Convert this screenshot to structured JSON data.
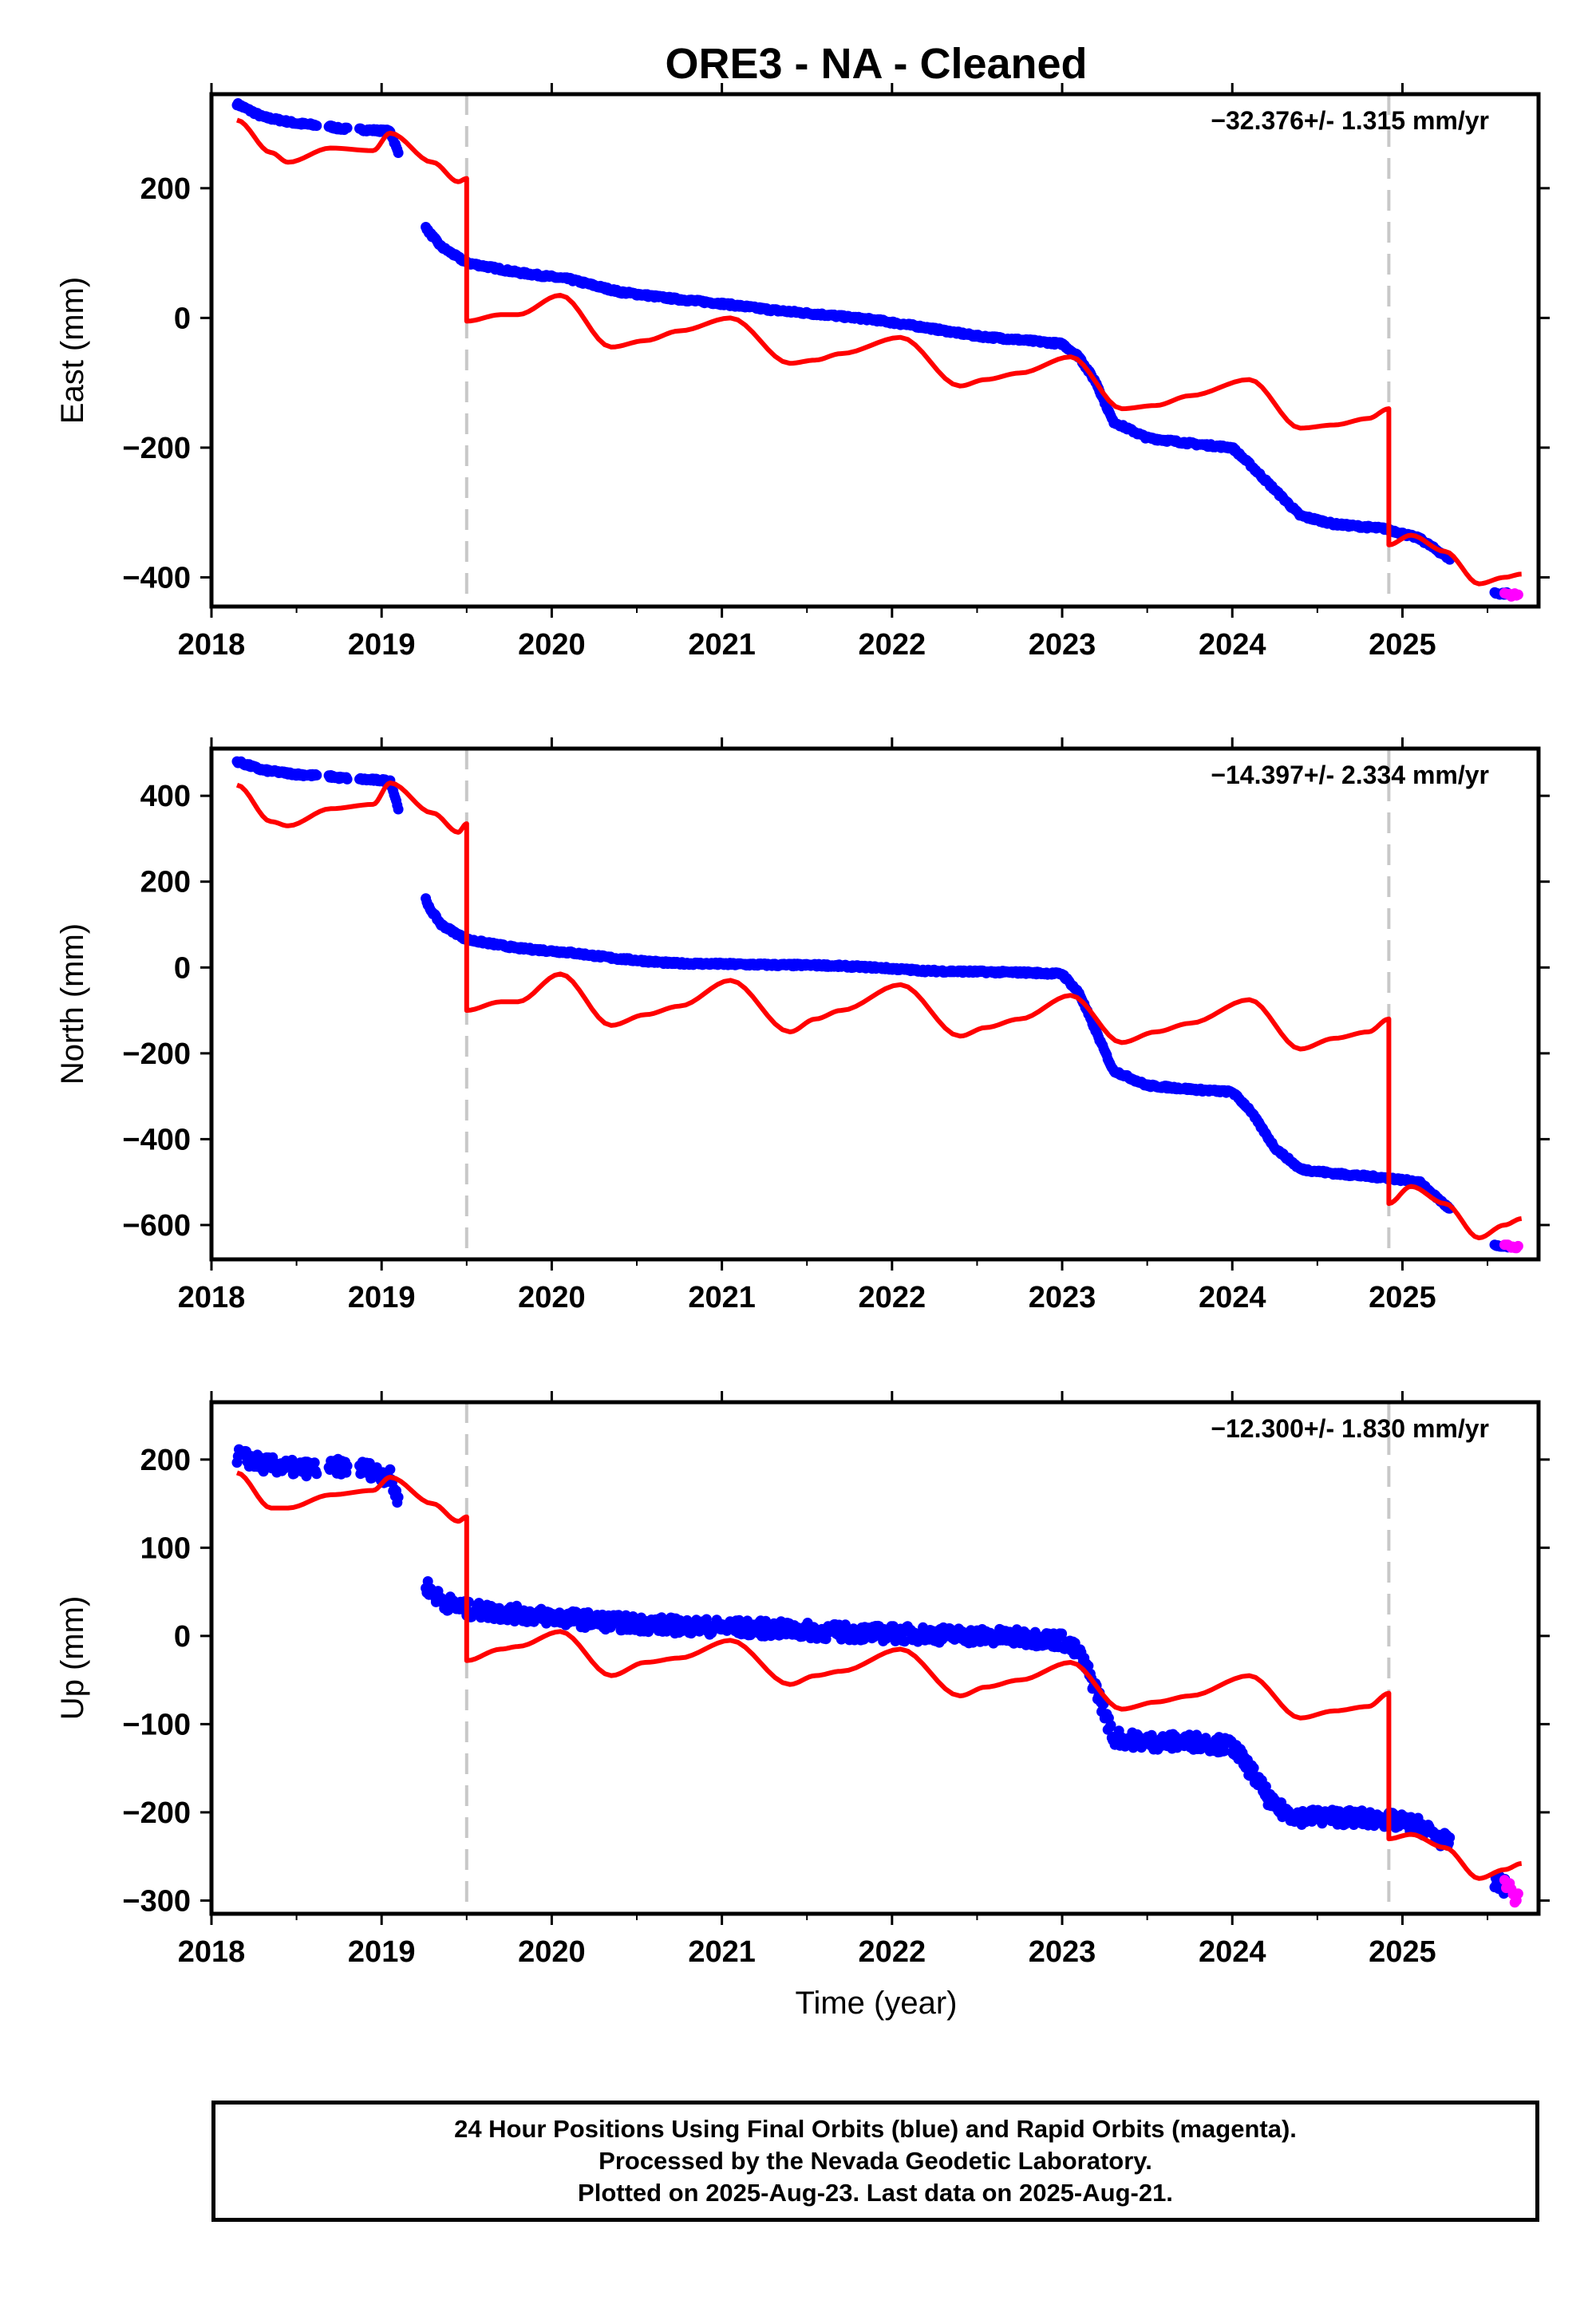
{
  "title": "ORE3  - NA - Cleaned",
  "xlabel": "Time (year)",
  "caption": [
    "24 Hour Positions Using Final Orbits (blue) and Rapid Orbits (magenta).",
    "Processed by the Nevada Geodetic Laboratory.",
    "Plotted on 2025-Aug-23. Last data on 2025-Aug-21."
  ],
  "colors": {
    "final": "#0000ff",
    "rapid": "#ff00ff",
    "model": "#ff0000",
    "event": "#c8c8c8"
  },
  "chart_data": [
    {
      "type": "scatter",
      "ylabel": "East (mm)",
      "rate_label": "-32.376+/- 1.315 mm/yr",
      "xlim": [
        2018,
        2025.8
      ],
      "ylim": [
        -445,
        345
      ],
      "xticks": [
        2018,
        2019,
        2020,
        2021,
        2022,
        2023,
        2024,
        2025
      ],
      "yticks": [
        -400,
        -200,
        0,
        200
      ],
      "event_lines": [
        2019.5,
        2024.92
      ],
      "series": [
        {
          "color": "#0000ff",
          "noise": 2,
          "x": [
            2018.15,
            2018.3,
            2018.5,
            2018.7,
            2018.75,
            2018.9,
            2019.05,
            2019.27,
            2019.35,
            2019.5,
            2019.8,
            2020.1,
            2020.4,
            2020.7,
            2021.0,
            2021.3,
            2021.6,
            2021.9,
            2022.2,
            2022.5,
            2022.8,
            2023.0,
            2023.1,
            2023.2,
            2023.3,
            2023.5,
            2023.8,
            2024.0,
            2024.1,
            2024.25,
            2024.4,
            2024.6,
            2024.9,
            2025.1,
            2025.27,
            2025.55,
            2025.62
          ],
          "y": [
            330,
            310,
            300,
            295,
            292,
            290,
            288,
            135,
            110,
            85,
            70,
            60,
            40,
            30,
            22,
            12,
            5,
            -3,
            -15,
            -28,
            -35,
            -40,
            -60,
            -100,
            -160,
            -185,
            -195,
            -200,
            -225,
            -265,
            -305,
            -318,
            -325,
            -340,
            -370,
            -425,
            -425
          ]
        },
        {
          "color": "#ff00ff",
          "noise": 3,
          "x": [
            2025.6,
            2025.68
          ],
          "y": [
            -425,
            -428
          ]
        },
        {
          "color": "#ff0000",
          "kind": "line",
          "x": [
            2018.15,
            2018.35,
            2018.45,
            2018.7,
            2018.95,
            2019.05,
            2019.3,
            2019.45,
            2019.5,
            2019.5,
            2019.7,
            2019.8,
            2020.05,
            2020.35,
            2020.55,
            2020.75,
            2021.05,
            2021.4,
            2021.55,
            2021.7,
            2022.05,
            2022.4,
            2022.55,
            2022.75,
            2023.05,
            2023.35,
            2023.55,
            2023.75,
            2024.1,
            2024.4,
            2024.6,
            2024.8,
            2024.92,
            2024.92,
            2025.05,
            2025.25,
            2025.45,
            2025.6,
            2025.7
          ],
          "y": [
            305,
            255,
            240,
            262,
            258,
            285,
            240,
            210,
            215,
            -5,
            5,
            5,
            35,
            -45,
            -35,
            -20,
            0,
            -70,
            -65,
            -55,
            -30,
            -105,
            -95,
            -85,
            -60,
            -140,
            -135,
            -120,
            -95,
            -170,
            -165,
            -155,
            -140,
            -350,
            -335,
            -360,
            -410,
            -400,
            -395
          ]
        }
      ]
    },
    {
      "type": "scatter",
      "ylabel": "North (mm)",
      "rate_label": "-14.397+/- 2.334 mm/yr",
      "xlim": [
        2018,
        2025.8
      ],
      "ylim": [
        -680,
        510
      ],
      "xticks": [
        2018,
        2019,
        2020,
        2021,
        2022,
        2023,
        2024,
        2025
      ],
      "yticks": [
        -600,
        -400,
        -200,
        0,
        200,
        400
      ],
      "event_lines": [
        2019.5,
        2024.92
      ],
      "series": [
        {
          "color": "#0000ff",
          "noise": 3,
          "x": [
            2018.15,
            2018.3,
            2018.5,
            2018.7,
            2018.75,
            2018.9,
            2019.05,
            2019.27,
            2019.35,
            2019.5,
            2019.8,
            2020.1,
            2020.4,
            2020.7,
            2021.0,
            2021.3,
            2021.6,
            2021.9,
            2022.2,
            2022.5,
            2022.8,
            2023.0,
            2023.1,
            2023.2,
            2023.3,
            2023.5,
            2023.8,
            2024.0,
            2024.1,
            2024.25,
            2024.4,
            2024.6,
            2024.9,
            2025.1,
            2025.27,
            2025.55,
            2025.62
          ],
          "y": [
            480,
            460,
            450,
            445,
            442,
            438,
            435,
            145,
            100,
            65,
            45,
            35,
            20,
            10,
            8,
            6,
            5,
            0,
            -8,
            -10,
            -12,
            -15,
            -60,
            -150,
            -240,
            -275,
            -285,
            -290,
            -330,
            -420,
            -470,
            -480,
            -490,
            -500,
            -560,
            -650,
            -650
          ]
        },
        {
          "color": "#ff00ff",
          "noise": 3,
          "x": [
            2025.6,
            2025.68
          ],
          "y": [
            -648,
            -652
          ]
        },
        {
          "color": "#ff0000",
          "kind": "line",
          "x": [
            2018.15,
            2018.35,
            2018.45,
            2018.7,
            2018.95,
            2019.05,
            2019.3,
            2019.45,
            2019.5,
            2019.5,
            2019.7,
            2019.8,
            2020.05,
            2020.35,
            2020.55,
            2020.75,
            2021.05,
            2021.4,
            2021.55,
            2021.7,
            2022.05,
            2022.4,
            2022.55,
            2022.75,
            2023.05,
            2023.35,
            2023.55,
            2023.75,
            2024.1,
            2024.4,
            2024.6,
            2024.8,
            2024.92,
            2024.92,
            2025.05,
            2025.25,
            2025.45,
            2025.6,
            2025.7
          ],
          "y": [
            425,
            340,
            330,
            370,
            380,
            430,
            360,
            315,
            335,
            -100,
            -80,
            -80,
            -15,
            -135,
            -110,
            -90,
            -30,
            -150,
            -120,
            -100,
            -40,
            -160,
            -140,
            -120,
            -65,
            -175,
            -150,
            -130,
            -75,
            -190,
            -165,
            -150,
            -120,
            -550,
            -510,
            -550,
            -630,
            -600,
            -585
          ]
        }
      ]
    },
    {
      "type": "scatter",
      "ylabel": "Up (mm)",
      "rate_label": "-12.300+/- 1.830 mm/yr",
      "xlim": [
        2018,
        2025.8
      ],
      "ylim": [
        -315,
        265
      ],
      "xticks": [
        2018,
        2019,
        2020,
        2021,
        2022,
        2023,
        2024,
        2025
      ],
      "yticks": [
        -300,
        -200,
        -100,
        0,
        100,
        200
      ],
      "event_lines": [
        2019.5,
        2024.92
      ],
      "series": [
        {
          "color": "#0000ff",
          "noise": 9,
          "x": [
            2018.15,
            2018.3,
            2018.5,
            2018.7,
            2018.75,
            2018.9,
            2019.05,
            2019.27,
            2019.35,
            2019.5,
            2019.8,
            2020.1,
            2020.4,
            2020.7,
            2021.0,
            2021.3,
            2021.6,
            2021.9,
            2022.2,
            2022.5,
            2022.8,
            2023.0,
            2023.1,
            2023.2,
            2023.3,
            2023.5,
            2023.8,
            2024.0,
            2024.1,
            2024.25,
            2024.4,
            2024.6,
            2024.9,
            2025.1,
            2025.27,
            2025.55,
            2025.62
          ],
          "y": [
            205,
            195,
            190,
            190,
            192,
            190,
            180,
            55,
            40,
            30,
            25,
            20,
            15,
            12,
            10,
            8,
            5,
            3,
            2,
            0,
            -2,
            -5,
            -20,
            -60,
            -115,
            -120,
            -120,
            -125,
            -150,
            -195,
            -205,
            -205,
            -208,
            -215,
            -235,
            -280,
            -285
          ]
        },
        {
          "color": "#ff00ff",
          "noise": 8,
          "x": [
            2025.6,
            2025.64,
            2025.68
          ],
          "y": [
            -275,
            -290,
            -300
          ]
        },
        {
          "color": "#ff0000",
          "kind": "line",
          "x": [
            2018.15,
            2018.35,
            2018.45,
            2018.7,
            2018.95,
            2019.05,
            2019.3,
            2019.45,
            2019.5,
            2019.5,
            2019.7,
            2019.8,
            2020.05,
            2020.35,
            2020.55,
            2020.75,
            2021.05,
            2021.4,
            2021.55,
            2021.7,
            2022.05,
            2022.4,
            2022.55,
            2022.75,
            2023.05,
            2023.35,
            2023.55,
            2023.75,
            2024.1,
            2024.4,
            2024.6,
            2024.8,
            2024.92,
            2024.92,
            2025.05,
            2025.25,
            2025.45,
            2025.6,
            2025.7
          ],
          "y": [
            185,
            145,
            145,
            160,
            165,
            180,
            150,
            130,
            135,
            -28,
            -15,
            -12,
            5,
            -45,
            -30,
            -25,
            -5,
            -55,
            -45,
            -40,
            -15,
            -68,
            -58,
            -50,
            -30,
            -83,
            -75,
            -68,
            -45,
            -93,
            -85,
            -80,
            -65,
            -230,
            -225,
            -240,
            -275,
            -265,
            -258
          ]
        }
      ]
    }
  ]
}
